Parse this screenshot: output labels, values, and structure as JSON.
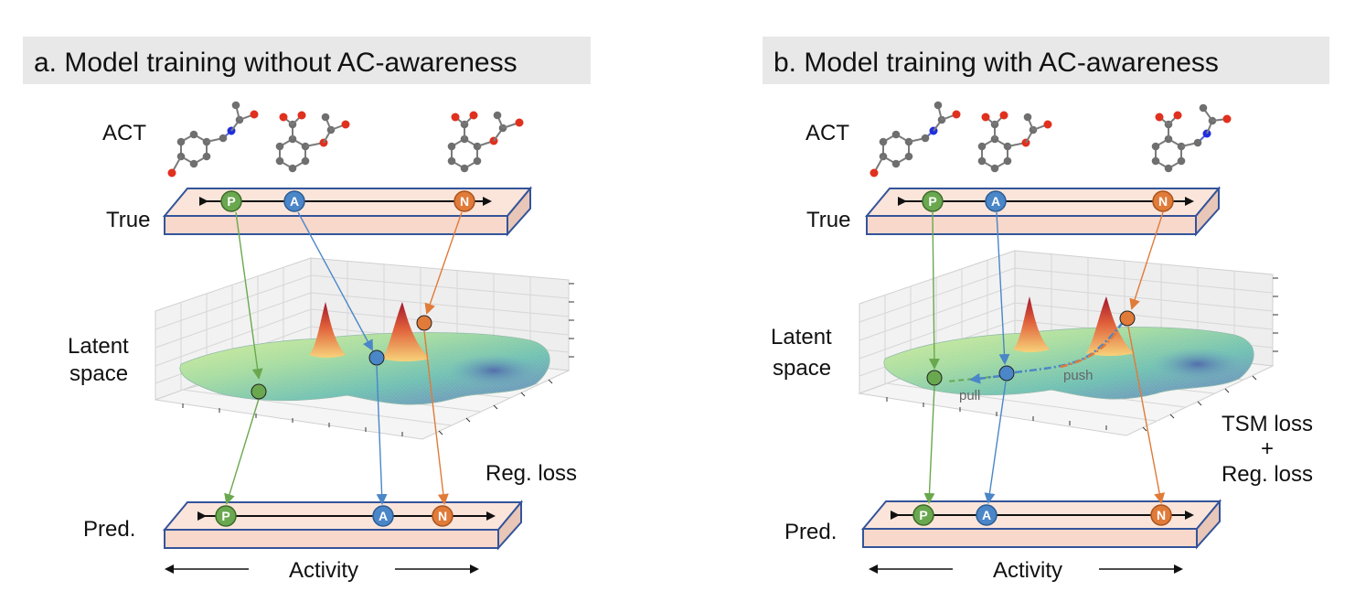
{
  "panels": [
    {
      "id": "a",
      "header": "a. Model training without AC-awareness",
      "act_label": "ACT",
      "true_label": "True",
      "latent_label_line1": "Latent",
      "latent_label_line2": "space",
      "pred_label": "Pred.",
      "loss_label": "Reg. loss",
      "activity_label": "Activity",
      "nodes": {
        "p": "P",
        "a": "A",
        "n": "N"
      }
    },
    {
      "id": "b",
      "header": "b. Model training with AC-awareness",
      "act_label": "ACT",
      "true_label": "True",
      "latent_label_line1": "Latent",
      "latent_label_line2": "space",
      "pred_label": "Pred.",
      "loss_line1": "TSM loss",
      "loss_line2": "+",
      "loss_line3": "Reg. loss",
      "activity_label": "Activity",
      "pull_label": "pull",
      "push_label": "push",
      "nodes": {
        "p": "P",
        "a": "A",
        "n": "N"
      }
    }
  ],
  "colors": {
    "header_bg": "#e8e8e8",
    "bar_front": "#f7d8cb",
    "bar_edge": "#34549a",
    "node_p": "#6aa84f",
    "node_a": "#4a86c8",
    "node_n": "#e07b39",
    "atom_carbon": "#6f6f6f",
    "atom_oxygen": "#e0301e",
    "atom_nitrogen": "#1f2ee0"
  }
}
